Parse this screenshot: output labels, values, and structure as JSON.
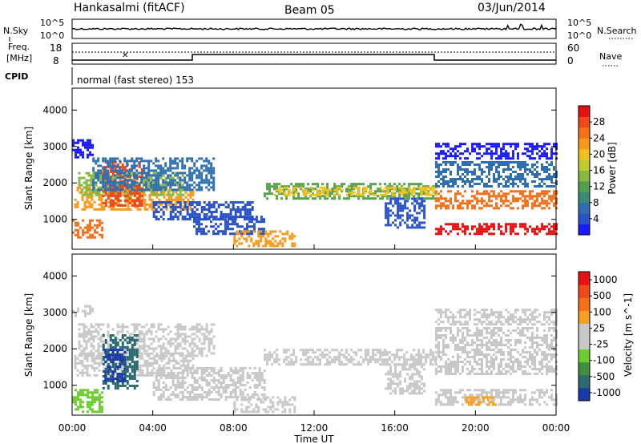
{
  "header": {
    "station": "Hankasalmi (fitACF)",
    "beam": "Beam 05",
    "date": "03/Jun/2014"
  },
  "summary_labels": {
    "nsky": "N.Sky",
    "nsearch": "N.Search",
    "freq_line1": "Freq.",
    "freq_line2": "[MHz]",
    "nave": "Nave",
    "cpid": "CPID",
    "cpid_value": "normal (fast stereo) 153",
    "noise_ticks_left": [
      "10^5",
      "10^0"
    ],
    "noise_ticks_right": [
      "10^5",
      "10^0"
    ],
    "freq_ticks": [
      "18",
      "8"
    ],
    "nave_ticks": [
      "60",
      "0"
    ]
  },
  "time_axis": {
    "label": "Time UT",
    "ticks": [
      "00:00",
      "04:00",
      "08:00",
      "12:00",
      "16:00",
      "20:00",
      "00:00"
    ]
  },
  "chart_data": [
    {
      "type": "heatmap",
      "name": "power",
      "ylabel": "Slant Range [km]",
      "ylim": [
        180,
        4600
      ],
      "yticks": [
        "1000",
        "2000",
        "3000",
        "4000"
      ],
      "xlim_hours": [
        0,
        24
      ],
      "colorbar": {
        "label": "Power [dB]",
        "ticks": [
          "4",
          "8",
          "12",
          "16",
          "20",
          "24",
          "28"
        ],
        "colors": [
          "#1a1aff",
          "#2a52c8",
          "#2f6fb0",
          "#3a8a78",
          "#52a04c",
          "#86b840",
          "#bfcc30",
          "#f0c020",
          "#f59a18",
          "#f57018",
          "#f04818",
          "#e81010"
        ]
      },
      "bands": [
        {
          "t0": 0.1,
          "t1": 6.0,
          "r0": 1300,
          "r1": 1900,
          "color": "#f59a18"
        },
        {
          "t0": 0.3,
          "t1": 5.5,
          "r0": 1700,
          "r1": 2300,
          "color": "#86b840"
        },
        {
          "t0": 1.5,
          "t1": 3.5,
          "r0": 1400,
          "r1": 2600,
          "color": "#f04818"
        },
        {
          "t0": 0.0,
          "t1": 1.5,
          "r0": 500,
          "r1": 1000,
          "color": "#f57018"
        },
        {
          "t0": 1.0,
          "t1": 7.0,
          "r0": 1800,
          "r1": 2700,
          "color": "#2f6fb0"
        },
        {
          "t0": 4.0,
          "t1": 9.0,
          "r0": 1000,
          "r1": 1500,
          "color": "#2a52c8"
        },
        {
          "t0": 6.0,
          "t1": 9.5,
          "r0": 600,
          "r1": 1100,
          "color": "#2a52c8"
        },
        {
          "t0": 8.0,
          "t1": 11.0,
          "r0": 300,
          "r1": 700,
          "color": "#f59a18"
        },
        {
          "t0": 9.5,
          "t1": 18.0,
          "r0": 1600,
          "r1": 2000,
          "color": "#52a04c"
        },
        {
          "t0": 10.0,
          "t1": 18.0,
          "r0": 1700,
          "r1": 1900,
          "color": "#f0c020"
        },
        {
          "t0": 15.5,
          "t1": 17.5,
          "r0": 800,
          "r1": 1600,
          "color": "#2a52c8"
        },
        {
          "t0": 18.0,
          "t1": 24.0,
          "r0": 1300,
          "r1": 1800,
          "color": "#f57018"
        },
        {
          "t0": 18.0,
          "t1": 24.0,
          "r0": 600,
          "r1": 900,
          "color": "#e81010"
        },
        {
          "t0": 18.0,
          "t1": 24.0,
          "r0": 1900,
          "r1": 2600,
          "color": "#2f6fb0"
        },
        {
          "t0": 18.0,
          "t1": 24.0,
          "r0": 2700,
          "r1": 3100,
          "color": "#1a1aff"
        },
        {
          "t0": 0.0,
          "t1": 1.0,
          "r0": 2700,
          "r1": 3200,
          "color": "#1a1aff"
        }
      ]
    },
    {
      "type": "heatmap",
      "name": "velocity",
      "ylabel": "Slant Range [km]",
      "ylim": [
        180,
        4600
      ],
      "yticks": [
        "1000",
        "2000",
        "3000",
        "4000"
      ],
      "xlim_hours": [
        0,
        24
      ],
      "colorbar": {
        "label": "Velocity [m s^-1]",
        "ticks": [
          "1000",
          "500",
          "100",
          "25",
          "-25",
          "-100",
          "-500",
          "-1000"
        ],
        "colors": [
          "#1a3aa8",
          "#2a6a70",
          "#3f8f3f",
          "#6ccc30",
          "#c8c8c8",
          "#c8c8c8",
          "#f5a020",
          "#f57018",
          "#f04818",
          "#e81010"
        ]
      },
      "bands": [
        {
          "t0": 0.1,
          "t1": 6.0,
          "r0": 1300,
          "r1": 1900,
          "color": "#c8c8c8"
        },
        {
          "t0": 0.3,
          "t1": 7.0,
          "r0": 1800,
          "r1": 2700,
          "color": "#c8c8c8"
        },
        {
          "t0": 1.5,
          "t1": 3.2,
          "r0": 900,
          "r1": 2400,
          "color": "#2a6a70"
        },
        {
          "t0": 1.6,
          "t1": 2.6,
          "r0": 1100,
          "r1": 2000,
          "color": "#1a3aa8"
        },
        {
          "t0": 0.0,
          "t1": 1.5,
          "r0": 300,
          "r1": 900,
          "color": "#6ccc30"
        },
        {
          "t0": 4.0,
          "t1": 9.5,
          "r0": 600,
          "r1": 1500,
          "color": "#c8c8c8"
        },
        {
          "t0": 8.0,
          "t1": 11.0,
          "r0": 300,
          "r1": 700,
          "color": "#c8c8c8"
        },
        {
          "t0": 9.5,
          "t1": 18.0,
          "r0": 1600,
          "r1": 2000,
          "color": "#c8c8c8"
        },
        {
          "t0": 15.5,
          "t1": 17.5,
          "r0": 800,
          "r1": 1600,
          "color": "#c8c8c8"
        },
        {
          "t0": 18.0,
          "t1": 24.0,
          "r0": 1300,
          "r1": 2600,
          "color": "#c8c8c8"
        },
        {
          "t0": 18.0,
          "t1": 24.0,
          "r0": 500,
          "r1": 900,
          "color": "#c8c8c8"
        },
        {
          "t0": 19.5,
          "t1": 21.0,
          "r0": 500,
          "r1": 700,
          "color": "#f5a020"
        },
        {
          "t0": 18.0,
          "t1": 24.0,
          "r0": 2700,
          "r1": 3100,
          "color": "#c8c8c8"
        },
        {
          "t0": 0.0,
          "t1": 1.0,
          "r0": 2900,
          "r1": 3200,
          "color": "#c8c8c8"
        }
      ]
    }
  ]
}
